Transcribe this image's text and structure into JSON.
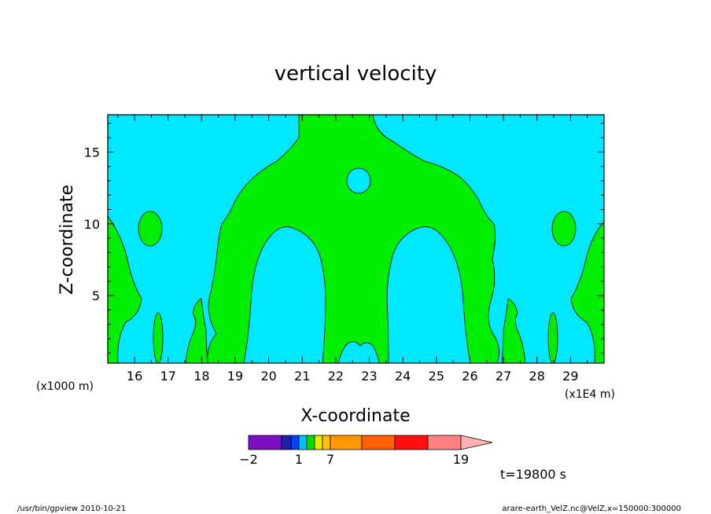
{
  "chart_data": {
    "type": "contour",
    "title": "vertical velocity",
    "xlabel": "X-coordinate",
    "ylabel": "Z-coordinate",
    "x_scale_label": "(x1E4 m)",
    "y_scale_label": "(x1000 m)",
    "xlim": [
      15.2,
      30.0
    ],
    "ylim": [
      0.3,
      17.6
    ],
    "x_ticks": [
      16,
      17,
      18,
      19,
      20,
      21,
      22,
      23,
      24,
      25,
      26,
      27,
      28,
      29
    ],
    "y_ticks": [
      5,
      10,
      15
    ],
    "grid": false,
    "fill_colors": {
      "negative_weak": "#00e8ff",
      "positive_weak": "#00ee00"
    },
    "colorbar": {
      "labels": [
        {
          "value": -2,
          "text": "−2"
        },
        {
          "value": 1,
          "text": "1"
        },
        {
          "value": 7,
          "text": "7"
        },
        {
          "value": 19,
          "text": "19"
        }
      ],
      "boundaries": [
        -2,
        -1,
        0,
        1,
        2,
        3,
        4,
        7,
        10,
        13,
        16,
        19
      ],
      "colors": [
        "#7a10c0",
        "#2020b0",
        "#0040ff",
        "#00c0ff",
        "#00e000",
        "#e8e800",
        "#ffc000",
        "#ff9800",
        "#ff6000",
        "#ff1010",
        "#ff8080",
        "#ffb0b0"
      ]
    }
  },
  "time_label": "t=19800 s",
  "footer": {
    "left": "/usr/bin/gpview   2010-10-21",
    "right": "arare-earth_VelZ.nc@VelZ,x=150000:300000"
  }
}
